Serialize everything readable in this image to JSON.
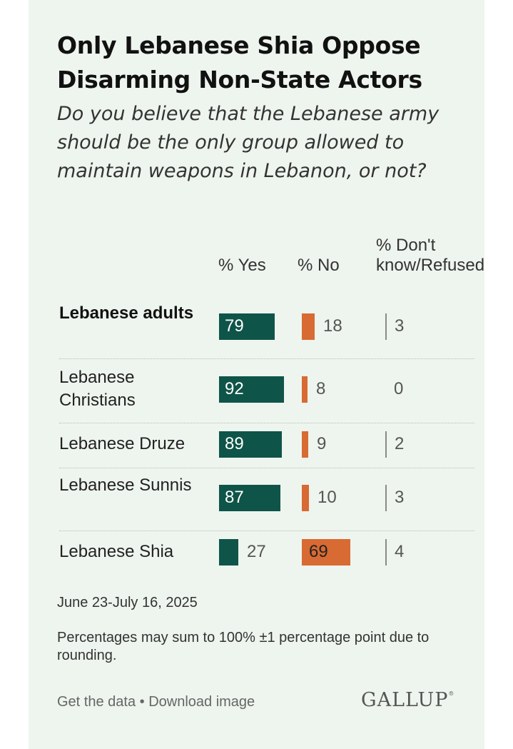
{
  "header": {
    "title": "Only Lebanese Shia Oppose Disarming Non-State Actors",
    "subtitle": "Do you believe that the Lebanese army should be the only group allowed to maintain weapons in Lebanon, or not?"
  },
  "columns": {
    "yes": "% Yes",
    "no": "% No",
    "dk": "% Don't know/Refused"
  },
  "colors": {
    "yes": "#0f5448",
    "no": "#d86a33",
    "tick": "#8a8a8a",
    "background": "#eef4ee"
  },
  "chart_data": {
    "type": "bar",
    "title": "Only Lebanese Shia Oppose Disarming Non-State Actors",
    "subtitle": "Do you believe that the Lebanese army should be the only group allowed to maintain weapons in Lebanon, or not?",
    "categories": [
      "Lebanese adults",
      "Lebanese Christians",
      "Lebanese Druze",
      "Lebanese Sunnis",
      "Lebanese Shia"
    ],
    "series": [
      {
        "name": "% Yes",
        "values": [
          79,
          92,
          89,
          87,
          27
        ]
      },
      {
        "name": "% No",
        "values": [
          18,
          8,
          9,
          10,
          69
        ]
      },
      {
        "name": "% Don't know/Refused",
        "values": [
          3,
          0,
          2,
          3,
          4
        ]
      }
    ],
    "ylim": [
      0,
      100
    ],
    "orientation": "horizontal"
  },
  "footer": {
    "date": "June 23-July 16, 2025",
    "note": "Percentages may sum to 100% ±1 percentage point due to rounding.",
    "get_data": "Get the data",
    "separator": " • ",
    "download": "Download image",
    "brand": "GALLUP",
    "brand_mark": "®"
  }
}
